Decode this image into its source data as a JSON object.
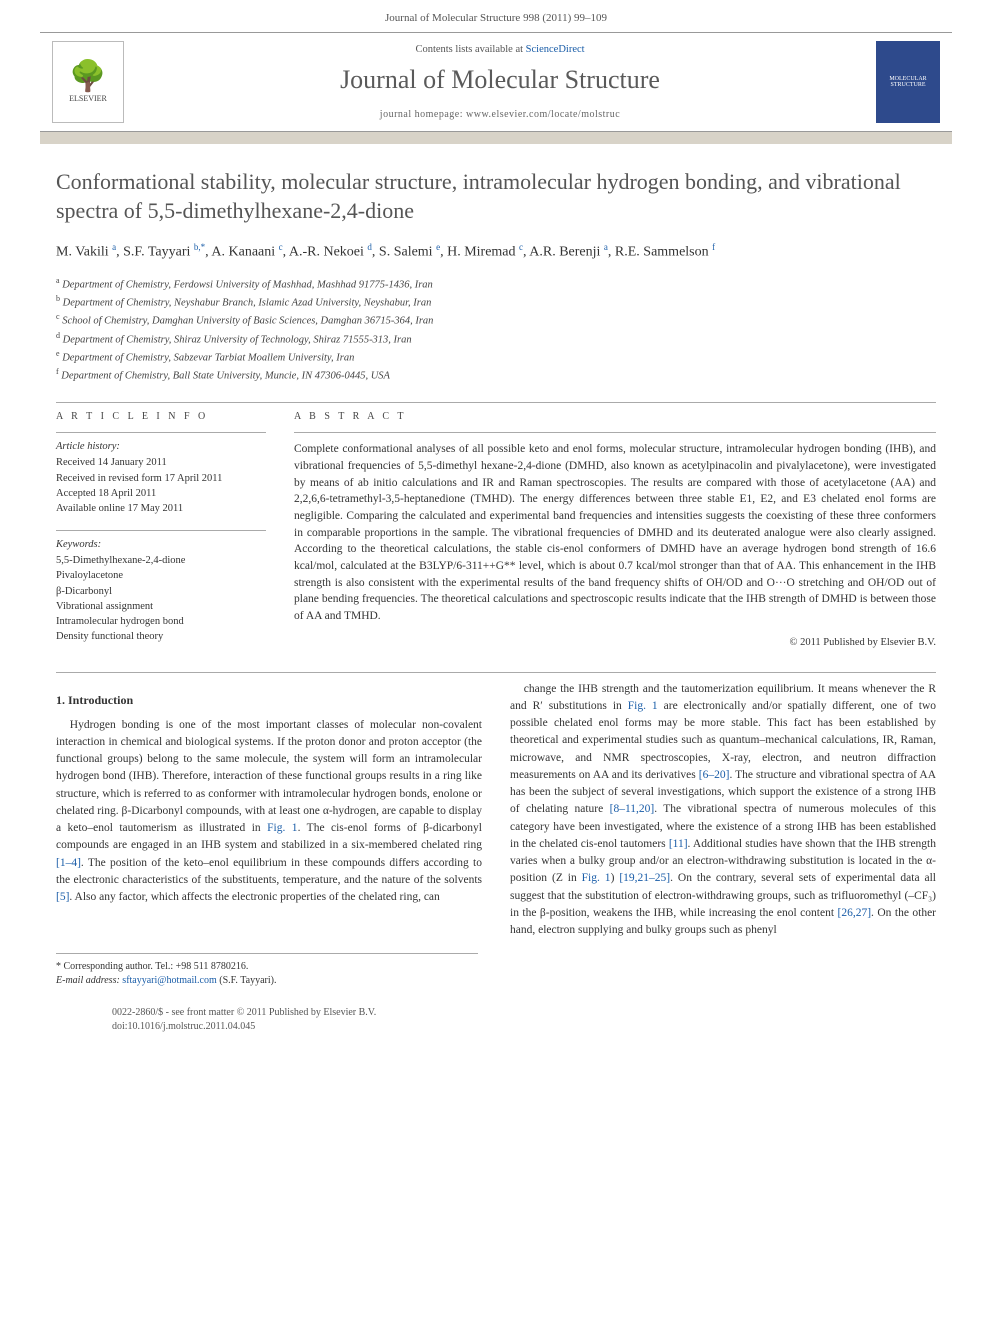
{
  "header": {
    "citation": "Journal of Molecular Structure 998 (2011) 99–109",
    "contents_prefix": "Contents lists available at ",
    "contents_link": "ScienceDirect",
    "journal_name": "Journal of Molecular Structure",
    "homepage": "journal homepage: www.elsevier.com/locate/molstruc",
    "elsevier_label": "ELSEVIER",
    "cover_text": "MOLECULAR STRUCTURE"
  },
  "article": {
    "title": "Conformational stability, molecular structure, intramolecular hydrogen bonding, and vibrational spectra of 5,5-dimethylhexane-2,4-dione",
    "authors_html": "M. Vakili <sup>a</sup>, S.F. Tayyari <sup>b,*</sup>, A. Kanaani <sup>c</sup>, A.-R. Nekoei <sup>d</sup>, S. Salemi <sup>e</sup>, H. Miremad <sup>c</sup>, A.R. Berenji <sup>a</sup>, R.E. Sammelson <sup>f</sup>",
    "affiliations": [
      "a Department of Chemistry, Ferdowsi University of Mashhad, Mashhad 91775-1436, Iran",
      "b Department of Chemistry, Neyshabur Branch, Islamic Azad University, Neyshabur, Iran",
      "c School of Chemistry, Damghan University of Basic Sciences, Damghan 36715-364, Iran",
      "d Department of Chemistry, Shiraz University of Technology, Shiraz 71555-313, Iran",
      "e Department of Chemistry, Sabzevar Tarbiat Moallem University, Iran",
      "f Department of Chemistry, Ball State University, Muncie, IN 47306-0445, USA"
    ]
  },
  "info": {
    "heading": "A R T I C L E   I N F O",
    "history_label": "Article history:",
    "history": [
      "Received 14 January 2011",
      "Received in revised form 17 April 2011",
      "Accepted 18 April 2011",
      "Available online 17 May 2011"
    ],
    "keywords_label": "Keywords:",
    "keywords": [
      "5,5-Dimethylhexane-2,4-dione",
      "Pivaloylacetone",
      "β-Dicarbonyl",
      "Vibrational assignment",
      "Intramolecular hydrogen bond",
      "Density functional theory"
    ]
  },
  "abstract": {
    "heading": "A B S T R A C T",
    "text": "Complete conformational analyses of all possible keto and enol forms, molecular structure, intramolecular hydrogen bonding (IHB), and vibrational frequencies of 5,5-dimethyl hexane-2,4-dione (DMHD, also known as acetylpinacolin and pivalylacetone), were investigated by means of ab initio calculations and IR and Raman spectroscopies. The results are compared with those of acetylacetone (AA) and 2,2,6,6-tetramethyl-3,5-heptanedione (TMHD). The energy differences between three stable E1, E2, and E3 chelated enol forms are negligible. Comparing the calculated and experimental band frequencies and intensities suggests the coexisting of these three conformers in comparable proportions in the sample. The vibrational frequencies of DMHD and its deuterated analogue were also clearly assigned. According to the theoretical calculations, the stable cis-enol conformers of DMHD have an average hydrogen bond strength of 16.6 kcal/mol, calculated at the B3LYP/6-311++G** level, which is about 0.7 kcal/mol stronger than that of AA. This enhancement in the IHB strength is also consistent with the experimental results of the band frequency shifts of OH/OD and O···O stretching and OH/OD out of plane bending frequencies. The theoretical calculations and spectroscopic results indicate that the IHB strength of DMHD is between those of AA and TMHD.",
    "copyright": "© 2011 Published by Elsevier B.V."
  },
  "body": {
    "section1_heading": "1. Introduction",
    "para1": "Hydrogen bonding is one of the most important classes of molecular non-covalent interaction in chemical and biological systems. If the proton donor and proton acceptor (the functional groups) belong to the same molecule, the system will form an intramolecular hydrogen bond (IHB). Therefore, interaction of these functional groups results in a ring like structure, which is referred to as conformer with intramolecular hydrogen bonds, enolone or chelated ring. β-Dicarbonyl compounds, with at least one α-hydrogen, are capable to display a keto–enol tautomerism as illustrated in Fig. 1. The cis-enol forms of β-dicarbonyl compounds are engaged in an IHB system and stabilized in a six-membered chelated ring [1–4]. The position of the keto–enol equilibrium in these compounds differs according to the electronic characteristics of the substituents, temperature, and the nature of the solvents [5]. Also any factor, which affects the electronic properties of the chelated ring, can",
    "para2": "change the IHB strength and the tautomerization equilibrium. It means whenever the R and R′ substitutions in Fig. 1 are electronically and/or spatially different, one of two possible chelated enol forms may be more stable. This fact has been established by theoretical and experimental studies such as quantum–mechanical calculations, IR, Raman, microwave, and NMR spectroscopies, X-ray, electron, and neutron diffraction measurements on AA and its derivatives [6–20]. The structure and vibrational spectra of AA has been the subject of several investigations, which support the existence of a strong IHB of chelating nature [8–11,20]. The vibrational spectra of numerous molecules of this category have been investigated, where the existence of a strong IHB has been established in the chelated cis-enol tautomers [11]. Additional studies have shown that the IHB strength varies when a bulky group and/or an electron-withdrawing substitution is located in the α-position (Z in Fig. 1) [19,21–25]. On the contrary, several sets of experimental data all suggest that the substitution of electron-withdrawing groups, such as trifluoromethyl (–CF₃) in the β-position, weakens the IHB, while increasing the enol content [26,27]. On the other hand, electron supplying and bulky groups such as phenyl"
  },
  "footnote": {
    "corresp": "* Corresponding author. Tel.: +98 511 8780216.",
    "email_label": "E-mail address:",
    "email": "sftayyari@hotmail.com",
    "email_suffix": "(S.F. Tayyari)."
  },
  "footer": {
    "line1": "0022-2860/$ - see front matter © 2011 Published by Elsevier B.V.",
    "line2": "doi:10.1016/j.molstruc.2011.04.045"
  },
  "colors": {
    "link": "#1a5da8",
    "bar": "#d8d3c8",
    "title_gray": "#555555"
  }
}
